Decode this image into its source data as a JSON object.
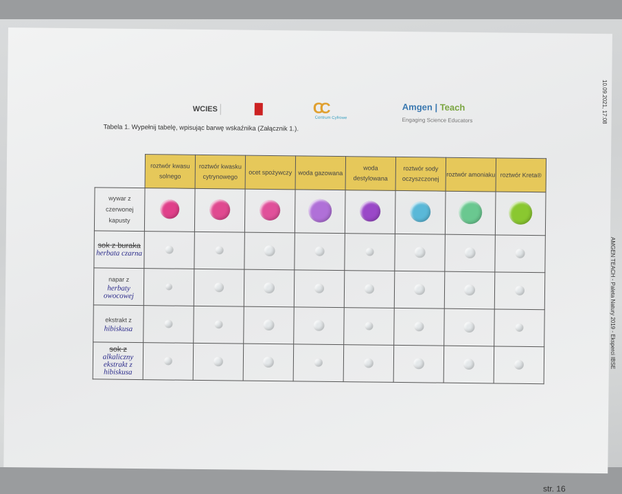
{
  "side_date": "10.09.2021, 17:08",
  "side_footer": "AMGEN TEACH - Paleta Natury 2019 - Eksperci IBSE",
  "logos": {
    "wcies": "WCIES",
    "centrum": "CC",
    "centrum_sub": "Centrum Cyfrowe",
    "amgen": "Amgen",
    "teach": "Teach",
    "amgen_tagline": "Engaging Science Educators"
  },
  "caption": "Tabela 1. Wypełnij tabelę, wpisując barwę wskaźnika (Załącznik 1.).",
  "columns": [
    "roztwór kwasu solnego",
    "roztwór kwasku cytrynowego",
    "ocet spożywczy",
    "woda gazowana",
    "woda destylowana",
    "roztwór sody oczyszczonej",
    "roztwór amoniaku",
    "roztwór Kreta®"
  ],
  "rows": [
    {
      "printed": "wywar z czerwonej kapusty",
      "struck": "",
      "handwritten": ""
    },
    {
      "printed": "",
      "struck": "sok z buraka",
      "handwritten": "herbata czarna"
    },
    {
      "printed": "napar z",
      "struck": "",
      "handwritten": "herbaty owocowej"
    },
    {
      "printed": "ekstrakt z",
      "struck": "",
      "handwritten": "hibiskusa"
    },
    {
      "printed": "",
      "struck": "sok z",
      "handwritten": "alkaliczny ekstrakt z hibiskusa"
    }
  ],
  "cabbage_colors": [
    "#e0408a",
    "#e04a90",
    "#e0509a",
    "#b070d8",
    "#9a48c8",
    "#5ab8d8",
    "#6ac890",
    "#8ac830"
  ],
  "clear_drop_color": "#e4e8ea",
  "page_number": "str. 16"
}
